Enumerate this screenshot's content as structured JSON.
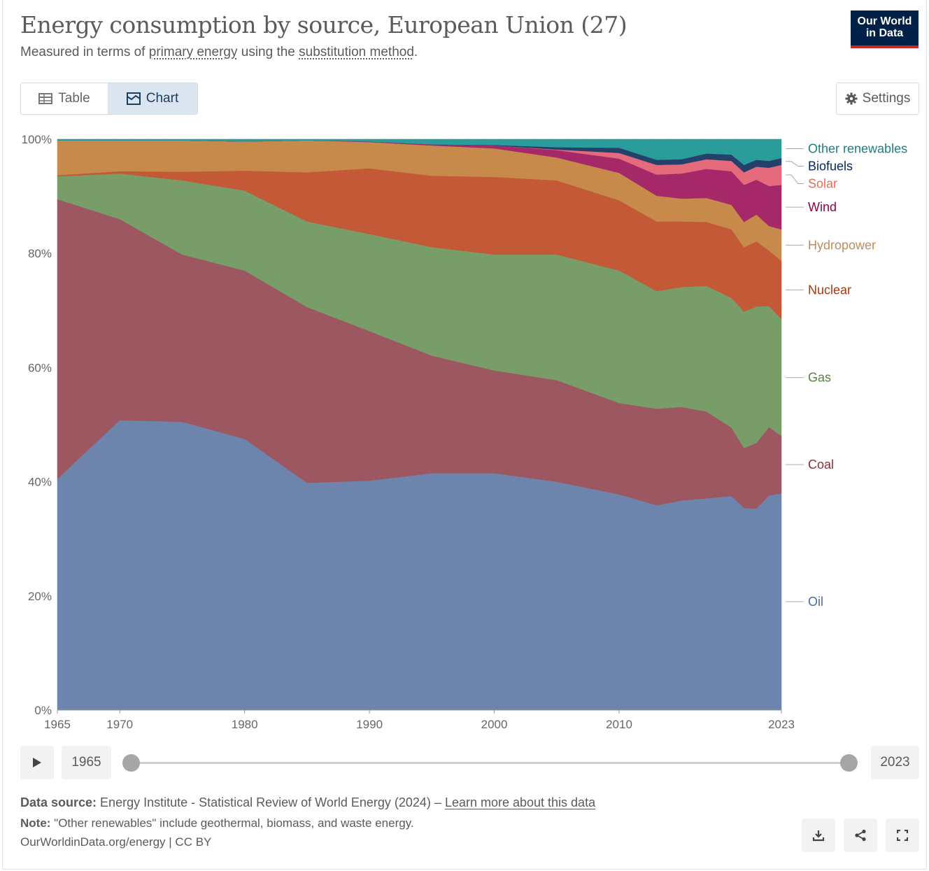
{
  "header": {
    "title": "Energy consumption by source, European Union (27)",
    "subtitle_pre": "Measured in terms of ",
    "subtitle_link1": "primary energy",
    "subtitle_mid": " using the ",
    "subtitle_link2": "substitution method",
    "subtitle_post": ".",
    "logo_line1": "Our World",
    "logo_line2": "in Data"
  },
  "tabs": {
    "table_label": "Table",
    "chart_label": "Chart",
    "active": "Chart"
  },
  "settings_label": "Settings",
  "colors": {
    "Oil": "#6d85ad",
    "Coal": "#9c5761",
    "Gas": "#789d69",
    "Nuclear": "#c35936",
    "Hydropower": "#c78a4b",
    "Wind": "#a52969",
    "Solar": "#e56a7c",
    "Biofuels": "#24406b",
    "Other renewables": "#2a9d9a"
  },
  "label_colors": {
    "Oil": "#4d6a9c",
    "Coal": "#883039",
    "Gas": "#578145",
    "Nuclear": "#b13507",
    "Hydropower": "#bc8e5a",
    "Wind": "#970046",
    "Solar": "#e56e5a",
    "Biofuels": "#00295b",
    "Other renewables": "#18827f"
  },
  "chart_data": {
    "type": "area",
    "stacked": true,
    "y_axis": {
      "min": 0,
      "max": 100,
      "ticks": [
        "0%",
        "20%",
        "40%",
        "60%",
        "80%",
        "100%"
      ],
      "tick_values": [
        0,
        20,
        40,
        60,
        80,
        100
      ]
    },
    "x_axis": {
      "min": 1965,
      "max": 2023,
      "ticks": [
        1965,
        1970,
        1980,
        1990,
        2000,
        2010,
        2023
      ]
    },
    "legend_placement": "right (inline labels)",
    "grid": "horizontal dashed",
    "x": [
      1965,
      1970,
      1975,
      1980,
      1985,
      1990,
      1995,
      2000,
      2005,
      2010,
      2013,
      2015,
      2017,
      2019,
      2020,
      2021,
      2022,
      2023
    ],
    "series": [
      {
        "name": "Oil",
        "values": [
          40.5,
          50.8,
          50.5,
          47.5,
          39.8,
          40.2,
          41.5,
          41.5,
          40.0,
          37.8,
          35.9,
          36.7,
          37.1,
          37.5,
          35.4,
          35.3,
          37.6,
          38.0
        ]
      },
      {
        "name": "Coal",
        "values": [
          49.0,
          35.2,
          29.3,
          29.5,
          30.8,
          26.2,
          20.6,
          18.0,
          17.8,
          16.0,
          16.9,
          16.4,
          15.2,
          12.0,
          10.5,
          11.5,
          12.0,
          10.0
        ]
      },
      {
        "name": "Gas",
        "values": [
          4.0,
          8.0,
          13.0,
          14.0,
          15.0,
          17.0,
          19.0,
          20.3,
          22.0,
          23.2,
          20.6,
          21.0,
          22.0,
          22.7,
          23.9,
          23.9,
          21.2,
          20.5
        ]
      },
      {
        "name": "Nuclear",
        "values": [
          0.2,
          0.4,
          1.5,
          3.5,
          8.6,
          11.5,
          12.5,
          13.6,
          13.0,
          12.3,
          12.2,
          11.5,
          11.2,
          12.0,
          11.3,
          11.4,
          9.7,
          10.2
        ]
      },
      {
        "name": "Hydropower",
        "values": [
          6.1,
          5.4,
          5.5,
          5.1,
          5.6,
          4.6,
          5.3,
          5.0,
          4.0,
          4.8,
          4.5,
          4.0,
          4.2,
          4.3,
          4.4,
          4.7,
          4.3,
          5.5
        ]
      },
      {
        "name": "Wind",
        "values": [
          0,
          0,
          0,
          0,
          0,
          0.1,
          0.2,
          0.5,
          1.3,
          2.5,
          3.7,
          4.4,
          5.1,
          5.9,
          6.5,
          6.1,
          7.0,
          7.8
        ]
      },
      {
        "name": "Solar",
        "values": [
          0,
          0,
          0,
          0,
          0,
          0,
          0,
          0,
          0.1,
          1.0,
          1.7,
          1.6,
          1.7,
          1.8,
          2.2,
          2.3,
          3.2,
          3.5
        ]
      },
      {
        "name": "Biofuels",
        "values": [
          0,
          0,
          0,
          0,
          0,
          0,
          0,
          0.1,
          0.4,
          0.9,
          0.9,
          0.9,
          1.0,
          1.1,
          1.3,
          1.2,
          1.2,
          1.2
        ]
      },
      {
        "name": "Other renewables",
        "values": [
          0.2,
          0.2,
          0.2,
          0.4,
          0.2,
          0.4,
          0.9,
          1.0,
          1.4,
          1.5,
          3.6,
          3.5,
          2.5,
          2.7,
          4.5,
          3.6,
          3.8,
          3.3
        ]
      }
    ]
  },
  "timeline": {
    "start_year": "1965",
    "end_year": "2023"
  },
  "footer": {
    "source_label": "Data source:",
    "source_text": " Energy Institute - Statistical Review of World Energy (2024) – ",
    "source_link": "Learn more about this data",
    "note_label": "Note:",
    "note_text": " \"Other renewables\" include geothermal, biomass, and waste energy.",
    "credit": "OurWorldinData.org/energy | CC BY"
  }
}
